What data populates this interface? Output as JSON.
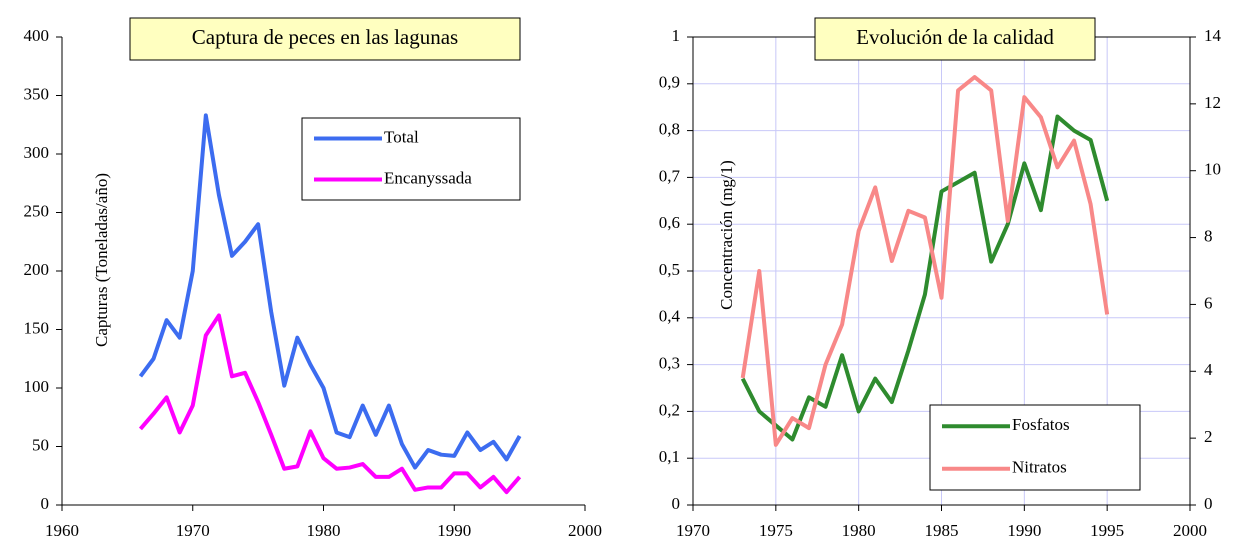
{
  "chart_data": [
    {
      "type": "line",
      "title": "Captura de peces en las lagunas",
      "y_label": "Capturas (Toneladas/año)",
      "x": [
        1966,
        1967,
        1968,
        1969,
        1970,
        1971,
        1972,
        1973,
        1974,
        1975,
        1976,
        1977,
        1978,
        1979,
        1980,
        1981,
        1982,
        1983,
        1984,
        1985,
        1986,
        1987,
        1988,
        1989,
        1990,
        1991,
        1992,
        1993,
        1994,
        1995
      ],
      "series": [
        {
          "name": "Total",
          "color": "#3c6cf0",
          "values": [
            110,
            125,
            158,
            143,
            200,
            333,
            265,
            213,
            225,
            240,
            165,
            102,
            143,
            120,
            100,
            62,
            58,
            85,
            60,
            85,
            52,
            32,
            47,
            43,
            42,
            62,
            47,
            54,
            39,
            59
          ]
        },
        {
          "name": "Encanyssada",
          "color": "#ff00ff",
          "values": [
            65,
            78,
            92,
            62,
            85,
            145,
            162,
            110,
            113,
            88,
            60,
            31,
            33,
            63,
            40,
            31,
            32,
            35,
            24,
            24,
            31,
            13,
            15,
            15,
            27,
            27,
            15,
            24,
            11,
            24
          ]
        }
      ],
      "xlim": [
        1960,
        2000
      ],
      "xticks": [
        1960,
        1970,
        1980,
        1990,
        2000
      ],
      "ylim": [
        0,
        400
      ],
      "yticks": [
        0,
        50,
        100,
        150,
        200,
        250,
        300,
        350,
        400
      ],
      "grid": false,
      "legend": "upper right"
    },
    {
      "type": "line",
      "title": "Evolución de la calidad",
      "y_label": "Concentración (mg/1)",
      "x": [
        1973,
        1974,
        1975,
        1976,
        1977,
        1978,
        1979,
        1980,
        1981,
        1982,
        1983,
        1984,
        1985,
        1986,
        1987,
        1988,
        1989,
        1990,
        1991,
        1992,
        1993,
        1994,
        1995
      ],
      "series": [
        {
          "name": "Fosfatos",
          "color": "#2e8b2e",
          "values": [
            0.27,
            0.2,
            0.17,
            0.14,
            0.23,
            0.21,
            0.32,
            0.2,
            0.27,
            0.22,
            0.33,
            0.45,
            0.67,
            0.69,
            0.71,
            0.52,
            0.6,
            0.73,
            0.63,
            0.83,
            0.8,
            0.78,
            0.65
          ]
        },
        {
          "name": "Nitratos",
          "color": "#f88888",
          "axis": "y2",
          "values": [
            3.8,
            7.0,
            1.8,
            2.6,
            2.3,
            4.2,
            5.4,
            8.2,
            9.5,
            7.3,
            8.8,
            8.6,
            6.2,
            12.4,
            12.8,
            12.4,
            8.5,
            12.2,
            11.6,
            10.1,
            10.9,
            9.0,
            5.7
          ]
        }
      ],
      "xlim": [
        1970,
        2000
      ],
      "xticks": [
        1970,
        1975,
        1980,
        1985,
        1990,
        1995,
        2000
      ],
      "ylim": [
        0,
        1
      ],
      "yticks": [
        0,
        {
          "value": 0.1,
          "label": "0,1"
        },
        {
          "value": 0.2,
          "label": "0,2"
        },
        {
          "value": 0.3,
          "label": "0,3"
        },
        {
          "value": 0.4,
          "label": "0,4"
        },
        {
          "value": 0.5,
          "label": "0,5"
        },
        {
          "value": 0.6,
          "label": "0,6"
        },
        {
          "value": 0.7,
          "label": "0,7"
        },
        {
          "value": 0.8,
          "label": "0,8"
        },
        {
          "value": 0.9,
          "label": "0,9"
        },
        1
      ],
      "y2lim": [
        0,
        14
      ],
      "y2ticks": [
        0,
        2,
        4,
        6,
        8,
        10,
        12,
        14
      ],
      "grid": true,
      "legend": "lower right"
    }
  ]
}
